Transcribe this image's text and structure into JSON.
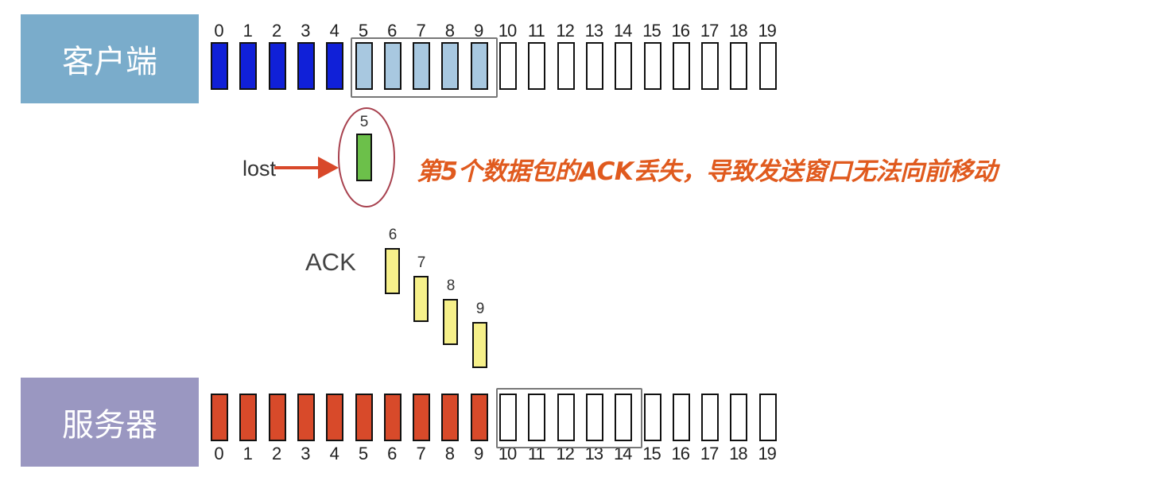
{
  "client": {
    "label": "客户端",
    "color": "#7aaccb"
  },
  "server": {
    "label": "服务器",
    "color": "#9a97c1"
  },
  "sequence_numbers": [
    "0",
    "1",
    "2",
    "3",
    "4",
    "5",
    "6",
    "7",
    "8",
    "9",
    "10",
    "11",
    "12",
    "13",
    "14",
    "15",
    "16",
    "17",
    "18",
    "19"
  ],
  "client_row": {
    "acked": [
      0,
      1,
      2,
      3,
      4
    ],
    "in_window": [
      5,
      6,
      7,
      8,
      9
    ],
    "window": [
      5,
      9
    ],
    "colors": {
      "acked": "#1020d8",
      "in_window": "#a8c8e0",
      "empty": "#ffffff"
    }
  },
  "server_row": {
    "received": [
      0,
      1,
      2,
      3,
      4,
      5,
      6,
      7,
      8,
      9
    ],
    "window": [
      10,
      14
    ],
    "colors": {
      "received": "#d84a2a",
      "empty": "#ffffff"
    }
  },
  "lost_packet": {
    "number": "5",
    "label": "lost",
    "color": "#6cc04a"
  },
  "acks": {
    "label": "ACK",
    "numbers": [
      "6",
      "7",
      "8",
      "9"
    ],
    "color": "#f6f08a"
  },
  "annotation": {
    "text": "第5个数据包的ACK丢失，导致发送窗口无法向前移动",
    "color": "#e05a1e"
  }
}
